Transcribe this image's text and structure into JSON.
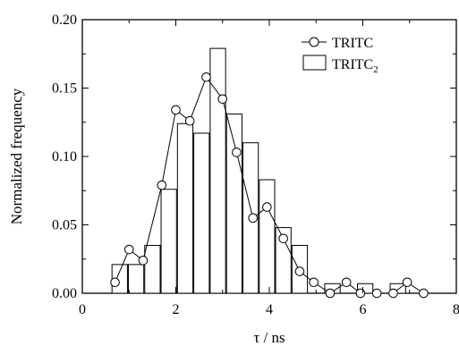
{
  "chart_data": {
    "type": "bar",
    "xlabel": "τ / ns",
    "ylabel": "Normalized frequency",
    "xlim": [
      0,
      8
    ],
    "ylim": [
      0,
      0.2
    ],
    "x_ticks": [
      "0",
      "2",
      "4",
      "6",
      "8"
    ],
    "y_ticks": [
      "0.00",
      "0.05",
      "0.10",
      "0.15",
      "0.20"
    ],
    "grid": false,
    "legend_position": "top-right",
    "series": [
      {
        "name": "TRITC",
        "style": "line-with-open-circles",
        "x": [
          0.7,
          1.0,
          1.3,
          1.7,
          2.0,
          2.3,
          2.65,
          3.0,
          3.3,
          3.65,
          3.95,
          4.3,
          4.65,
          4.95,
          5.3,
          5.65,
          5.95,
          6.3,
          6.65,
          6.95,
          7.3
        ],
        "y": [
          0.008,
          0.032,
          0.024,
          0.079,
          0.134,
          0.126,
          0.158,
          0.142,
          0.103,
          0.055,
          0.063,
          0.04,
          0.016,
          0.008,
          0.0,
          0.008,
          0.0,
          0.0,
          0.0,
          0.008,
          0.0
        ]
      },
      {
        "name": "TRITC",
        "name_subscript": "2",
        "style": "open-bars",
        "x": [
          0.8,
          1.15,
          1.5,
          1.85,
          2.2,
          2.55,
          2.9,
          3.25,
          3.6,
          3.95,
          4.3,
          4.65,
          5.0,
          5.35,
          5.7,
          6.05,
          6.4,
          6.75,
          7.1
        ],
        "bar_width": 0.33,
        "y": [
          0.021,
          0.021,
          0.035,
          0.076,
          0.124,
          0.117,
          0.179,
          0.131,
          0.11,
          0.083,
          0.048,
          0.035,
          0.0,
          0.007,
          0.0,
          0.007,
          0.0,
          0.007,
          0.0
        ]
      }
    ]
  }
}
